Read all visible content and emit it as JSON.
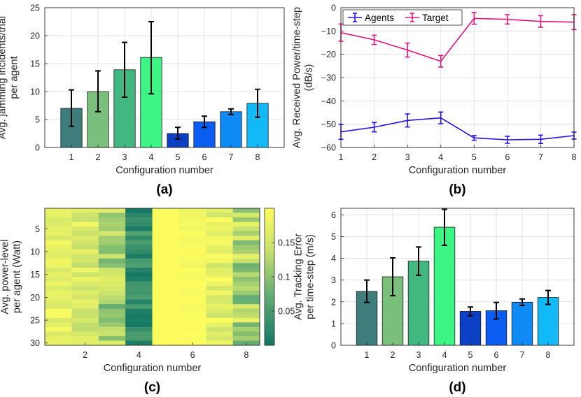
{
  "chart_data": [
    {
      "id": "a",
      "type": "bar",
      "panel_label": "(a)",
      "title": "",
      "xlabel": "Configuration number",
      "ylabel_lines": [
        "Avg. jamming incidents/trial",
        "per agent"
      ],
      "categories": [
        "1",
        "2",
        "3",
        "4",
        "5",
        "6",
        "7",
        "8"
      ],
      "values": [
        7.0,
        10.0,
        13.9,
        16.1,
        2.5,
        4.6,
        6.4,
        7.9
      ],
      "error_low": [
        3.8,
        6.4,
        9.0,
        9.6,
        1.5,
        3.6,
        5.9,
        5.4
      ],
      "error_high": [
        10.3,
        13.7,
        18.8,
        22.5,
        3.6,
        5.6,
        6.9,
        10.4
      ],
      "bar_colors": [
        "#3d7d7c",
        "#7bbf7c",
        "#42b881",
        "#3cf585",
        "#0b3fc4",
        "#0b5cf0",
        "#0f8bf7",
        "#12b9f7"
      ],
      "ylim": [
        0,
        25
      ],
      "yticks": [
        0,
        5,
        10,
        15,
        20,
        25
      ],
      "grid": true
    },
    {
      "id": "b",
      "type": "line",
      "panel_label": "(b)",
      "title": "",
      "xlabel": "Configuration number",
      "ylabel_lines": [
        "Avg. Received Power/time-step",
        "(dB/s)"
      ],
      "x": [
        1,
        2,
        3,
        4,
        5,
        6,
        7,
        8
      ],
      "series": [
        {
          "name": "Agents",
          "color": "#2a10e0",
          "values": [
            -53.3,
            -51.3,
            -48.4,
            -47.3,
            -55.9,
            -56.7,
            -56.5,
            -54.9
          ],
          "error": [
            3.2,
            2.0,
            2.8,
            2.5,
            1.0,
            1.5,
            1.8,
            1.5
          ]
        },
        {
          "name": "Target",
          "color": "#e0157a",
          "values": [
            -10.7,
            -13.8,
            -18.2,
            -23.0,
            -4.6,
            -5.0,
            -5.9,
            -6.2
          ],
          "error": [
            3.7,
            2.0,
            3.0,
            2.5,
            2.5,
            2.0,
            2.5,
            3.2
          ]
        }
      ],
      "xlim": [
        1,
        8
      ],
      "ylim": [
        -60,
        0
      ],
      "yticks": [
        -60,
        -50,
        -40,
        -30,
        -20,
        -10,
        0
      ],
      "legend_position": "top-left",
      "grid": true
    },
    {
      "id": "c",
      "type": "heatmap",
      "panel_label": "(c)",
      "title": "",
      "xlabel": "Configuration number",
      "ylabel_lines": [
        "Avg. power-level",
        "per agent (Watt)"
      ],
      "xticks": [
        2,
        4,
        6,
        8
      ],
      "yticks": [
        5,
        10,
        15,
        20,
        25,
        30
      ],
      "n_rows": 30,
      "n_cols": 8,
      "colorbar_ticks": [
        0.05,
        0.1,
        0.15
      ],
      "clim": [
        0.0,
        0.2
      ],
      "column_means": [
        0.175,
        0.16,
        0.12,
        0.03,
        0.2,
        0.195,
        0.175,
        0.13
      ],
      "column_spread": [
        0.02,
        0.03,
        0.05,
        0.03,
        0.0,
        0.01,
        0.03,
        0.06
      ]
    },
    {
      "id": "d",
      "type": "bar",
      "panel_label": "(d)",
      "title": "",
      "xlabel": "Configuration number",
      "ylabel_lines": [
        "Avg. Tracking Error",
        "per time-step (m/s)"
      ],
      "categories": [
        "1",
        "2",
        "3",
        "4",
        "5",
        "6",
        "7",
        "8"
      ],
      "values": [
        2.48,
        3.15,
        3.87,
        5.43,
        1.56,
        1.59,
        1.98,
        2.2
      ],
      "error_low": [
        1.97,
        2.28,
        3.22,
        4.6,
        1.36,
        1.21,
        1.83,
        1.88
      ],
      "error_high": [
        3.0,
        4.02,
        4.52,
        6.25,
        1.76,
        1.97,
        2.13,
        2.52
      ],
      "bar_colors": [
        "#3d7d7c",
        "#7bbf7c",
        "#42b881",
        "#3cf585",
        "#0b3fc4",
        "#0b5cf0",
        "#0f8bf7",
        "#12b9f7"
      ],
      "ylim": [
        0,
        6.3
      ],
      "yticks": [
        0,
        1,
        2,
        3,
        4,
        5,
        6
      ],
      "grid": true
    }
  ]
}
